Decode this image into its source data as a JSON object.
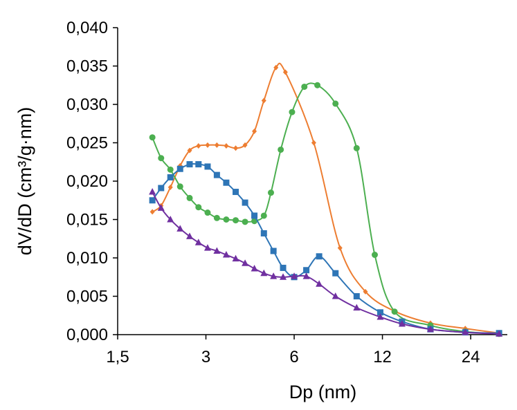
{
  "chart_data": {
    "type": "line",
    "title": "",
    "xlabel": "Dp (nm)",
    "ylabel": "dV/dD (cm³/g·nm)",
    "x_scale": "log2",
    "xlim": [
      1.5,
      32
    ],
    "ylim": [
      0,
      0.04
    ],
    "x_ticks": [
      1.5,
      3,
      6,
      12,
      24
    ],
    "x_tick_labels": [
      "1,5",
      "3",
      "6",
      "12",
      "24"
    ],
    "y_ticks": [
      0,
      0.005,
      0.01,
      0.015,
      0.02,
      0.025,
      0.03,
      0.035,
      0.04
    ],
    "y_tick_labels": [
      "0,000",
      "0,005",
      "0,010",
      "0,015",
      "0,020",
      "0,025",
      "0,030",
      "0,035",
      "0,040"
    ],
    "grid": false,
    "legend": "none",
    "series": [
      {
        "color": "#ED7D31",
        "marker": "diamond",
        "points": [
          [
            1.97,
            0.016
          ],
          [
            2.11,
            0.0168
          ],
          [
            2.27,
            0.0192
          ],
          [
            2.45,
            0.022
          ],
          [
            2.64,
            0.024
          ],
          [
            2.83,
            0.0246
          ],
          [
            3.04,
            0.0247
          ],
          [
            3.27,
            0.0247
          ],
          [
            3.52,
            0.0246
          ],
          [
            3.79,
            0.0243
          ],
          [
            4.08,
            0.0247
          ],
          [
            4.39,
            0.0265
          ],
          [
            4.73,
            0.0305
          ],
          [
            5.2,
            0.0348
          ],
          [
            5.6,
            0.0342
          ],
          [
            7.0,
            0.025
          ],
          [
            8.6,
            0.0113
          ],
          [
            10.5,
            0.0056
          ],
          [
            13.3,
            0.003
          ],
          [
            17.5,
            0.0015
          ],
          [
            23.0,
            0.0008
          ],
          [
            30.0,
            0.0002
          ]
        ]
      },
      {
        "color": "#4CAF50",
        "marker": "circle",
        "points": [
          [
            1.97,
            0.0257
          ],
          [
            2.11,
            0.023
          ],
          [
            2.27,
            0.0215
          ],
          [
            2.45,
            0.0193
          ],
          [
            2.64,
            0.0178
          ],
          [
            2.83,
            0.0166
          ],
          [
            3.04,
            0.0159
          ],
          [
            3.27,
            0.0152
          ],
          [
            3.52,
            0.015
          ],
          [
            3.79,
            0.0149
          ],
          [
            4.08,
            0.0147
          ],
          [
            4.39,
            0.0148
          ],
          [
            4.73,
            0.0155
          ],
          [
            5.0,
            0.0185
          ],
          [
            5.4,
            0.0241
          ],
          [
            5.9,
            0.029
          ],
          [
            6.5,
            0.0323
          ],
          [
            7.2,
            0.0325
          ],
          [
            8.3,
            0.0301
          ],
          [
            9.8,
            0.0243
          ],
          [
            11.3,
            0.0104
          ],
          [
            13.2,
            0.003
          ],
          [
            17.5,
            0.0012
          ],
          [
            23.0,
            0.0004
          ],
          [
            30.0,
            0.0001
          ]
        ]
      },
      {
        "color": "#2E75B6",
        "marker": "square",
        "points": [
          [
            1.97,
            0.0175
          ],
          [
            2.11,
            0.0191
          ],
          [
            2.27,
            0.0205
          ],
          [
            2.45,
            0.0216
          ],
          [
            2.64,
            0.0222
          ],
          [
            2.83,
            0.0222
          ],
          [
            3.04,
            0.0219
          ],
          [
            3.27,
            0.0208
          ],
          [
            3.52,
            0.0198
          ],
          [
            3.79,
            0.0186
          ],
          [
            4.08,
            0.0172
          ],
          [
            4.39,
            0.0155
          ],
          [
            4.73,
            0.0132
          ],
          [
            5.1,
            0.0109
          ],
          [
            5.5,
            0.0087
          ],
          [
            6.0,
            0.0075
          ],
          [
            6.6,
            0.0084
          ],
          [
            7.3,
            0.0102
          ],
          [
            8.3,
            0.008
          ],
          [
            9.8,
            0.005
          ],
          [
            11.8,
            0.0029
          ],
          [
            14.0,
            0.0017
          ],
          [
            17.5,
            0.0007
          ],
          [
            23.0,
            0.0003
          ],
          [
            30.0,
            0.0002
          ]
        ]
      },
      {
        "color": "#7030A0",
        "marker": "triangle",
        "points": [
          [
            1.97,
            0.0186
          ],
          [
            2.11,
            0.0165
          ],
          [
            2.27,
            0.015
          ],
          [
            2.45,
            0.0138
          ],
          [
            2.64,
            0.0128
          ],
          [
            2.83,
            0.012
          ],
          [
            3.04,
            0.0113
          ],
          [
            3.27,
            0.0109
          ],
          [
            3.52,
            0.0104
          ],
          [
            3.79,
            0.0099
          ],
          [
            4.08,
            0.0093
          ],
          [
            4.39,
            0.0086
          ],
          [
            4.73,
            0.008
          ],
          [
            5.1,
            0.0076
          ],
          [
            5.5,
            0.0075
          ],
          [
            6.0,
            0.0076
          ],
          [
            6.6,
            0.0076
          ],
          [
            7.3,
            0.0066
          ],
          [
            8.3,
            0.005
          ],
          [
            9.8,
            0.0035
          ],
          [
            11.8,
            0.0023
          ],
          [
            14.0,
            0.0014
          ],
          [
            17.5,
            0.0007
          ],
          [
            23.0,
            0.0003
          ],
          [
            30.0,
            0.0001
          ]
        ]
      }
    ]
  }
}
